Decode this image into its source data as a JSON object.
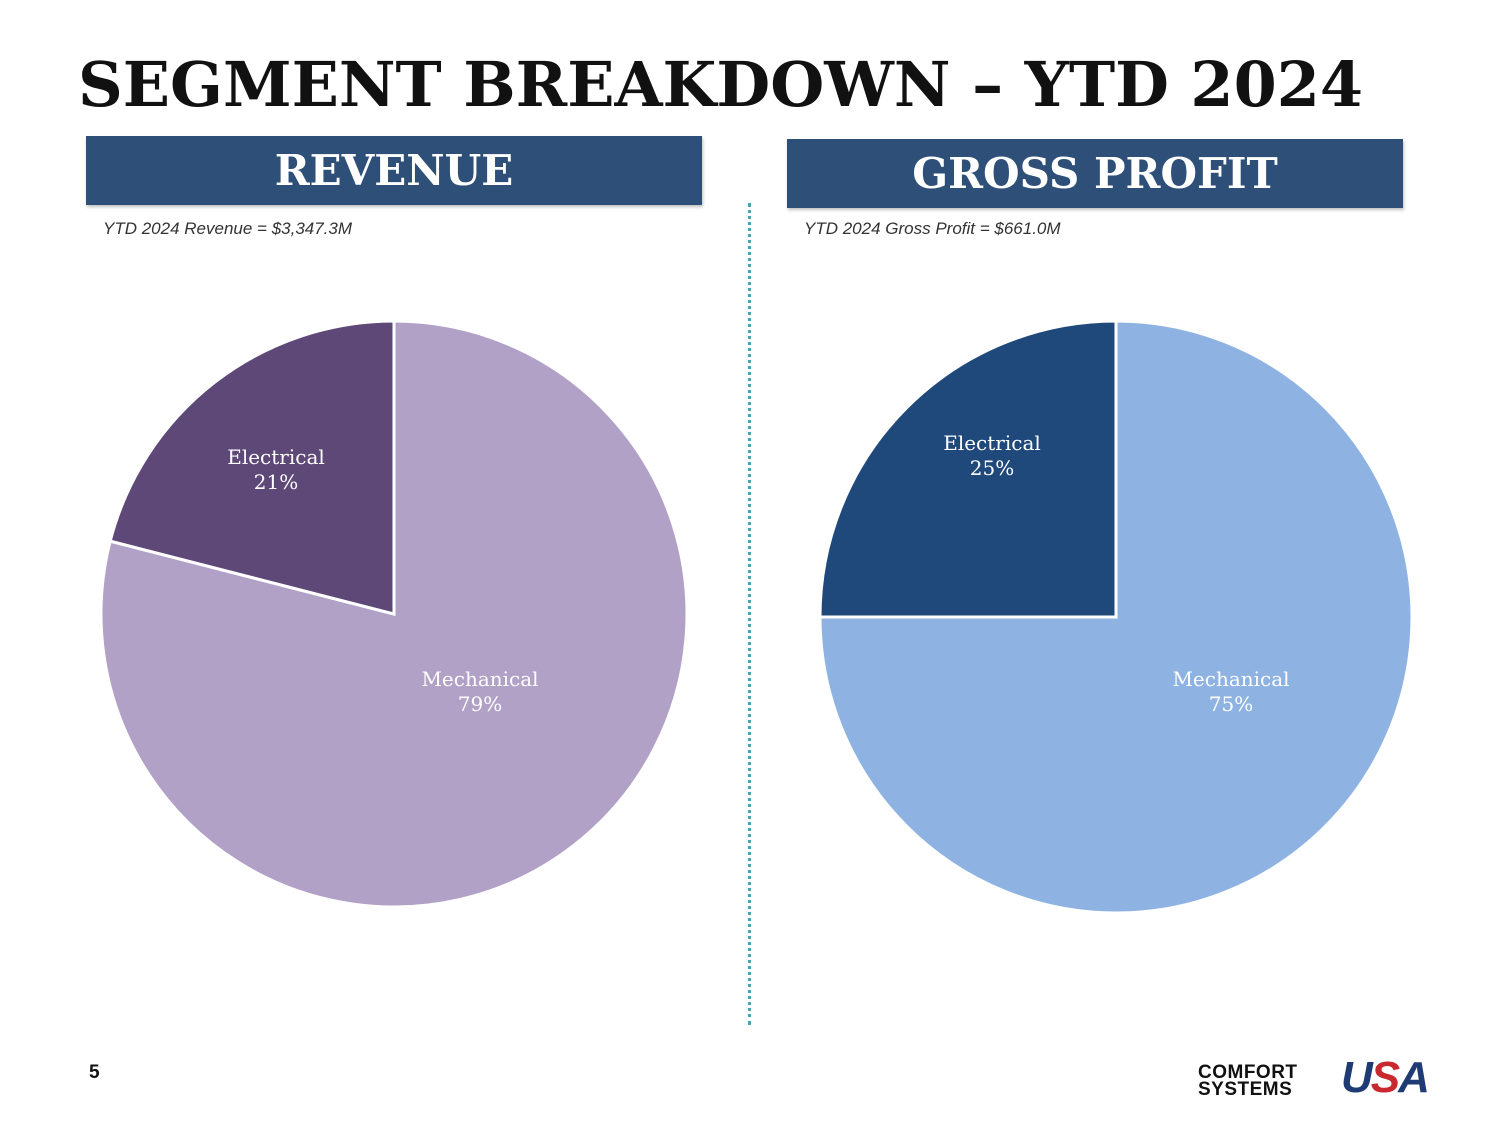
{
  "title": "SEGMENT BREAKDOWN – YTD 2024",
  "page_number": "5",
  "logo": {
    "line1": "COMFORT",
    "line2": "SYSTEMS",
    "mark_u": "U",
    "mark_s": "S",
    "mark_a": "A"
  },
  "colors": {
    "header_bg": "#2d4f78",
    "divider": "#4aa3b3",
    "revenue_mechanical": "#b2a1c7",
    "revenue_electrical": "#5e4878",
    "profit_mechanical": "#8eb3e2",
    "profit_electrical": "#1f487b"
  },
  "panels": {
    "left": {
      "header": "REVENUE",
      "subtitle": "YTD 2024 Revenue = $3,347.3M"
    },
    "right": {
      "header": "GROSS PROFIT",
      "subtitle": "YTD 2024 Gross Profit = $661.0M"
    }
  },
  "chart_data": [
    {
      "type": "pie",
      "title": "REVENUE",
      "subtitle": "YTD 2024 Revenue = $3,347.3M",
      "start_angle": "12 o'clock, clockwise",
      "slices": [
        {
          "label": "Mechanical",
          "value": 79,
          "display": "79%",
          "color": "#b2a1c7"
        },
        {
          "label": "Electrical",
          "value": 21,
          "display": "21%",
          "color": "#5e4878"
        }
      ]
    },
    {
      "type": "pie",
      "title": "GROSS PROFIT",
      "subtitle": "YTD 2024 Gross Profit = $661.0M",
      "start_angle": "12 o'clock, clockwise",
      "slices": [
        {
          "label": "Mechanical",
          "value": 75,
          "display": "75%",
          "color": "#8eb3e2"
        },
        {
          "label": "Electrical",
          "value": 25,
          "display": "25%",
          "color": "#1f487b"
        }
      ]
    }
  ]
}
